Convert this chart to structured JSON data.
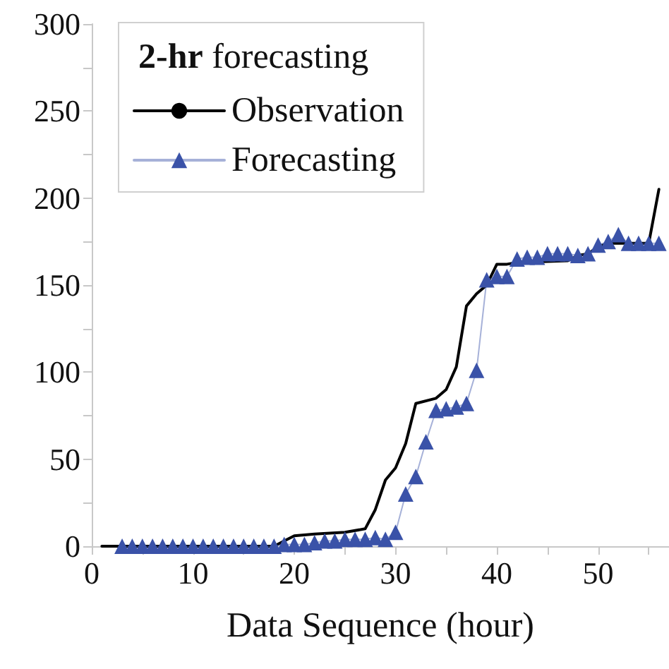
{
  "chart_data": {
    "type": "line",
    "legend_title": "2-hr forecasting",
    "xlabel": "Data Sequence (hour)",
    "xlim": [
      0,
      57
    ],
    "xticks": [
      0,
      {
        "value": 5,
        "label": null
      },
      10,
      {
        "value": 15,
        "label": null
      },
      20,
      {
        "value": 25,
        "label": null
      },
      30,
      {
        "value": 35,
        "label": null
      },
      40,
      {
        "value": 45,
        "label": null
      },
      50,
      {
        "value": 55,
        "label": null
      }
    ],
    "ylim": [
      0,
      300
    ],
    "yticks": [
      0,
      {
        "value": 25,
        "label": null
      },
      50,
      {
        "value": 75,
        "label": null
      },
      100,
      {
        "value": 125,
        "label": null
      },
      150,
      {
        "value": 175,
        "label": null
      },
      200,
      {
        "value": 225,
        "label": null
      },
      250,
      {
        "value": 275,
        "label": null
      },
      300
    ],
    "grid": false,
    "legend": "top left",
    "series": [
      {
        "name": "Observation",
        "color": "#000000",
        "marker": "none",
        "x": [
          1,
          18,
          20,
          22,
          25,
          27,
          28,
          29,
          30,
          31,
          32,
          34,
          35,
          36,
          37,
          38,
          39,
          40,
          41,
          42,
          47,
          48,
          49,
          50,
          51,
          55,
          56
        ],
        "values": [
          0,
          0,
          6,
          7,
          8,
          10,
          21,
          38,
          45,
          59,
          82,
          85,
          90,
          103,
          138,
          145,
          150,
          162,
          162,
          163,
          164,
          167,
          168,
          172,
          174,
          174,
          205
        ]
      },
      {
        "name": "Forecasting",
        "color": "#3a52a8",
        "marker": "triangle",
        "x": [
          3,
          4,
          5,
          6,
          7,
          8,
          9,
          10,
          11,
          12,
          13,
          14,
          15,
          16,
          17,
          18,
          19,
          20,
          21,
          22,
          23,
          24,
          25,
          26,
          27,
          28,
          29,
          30,
          31,
          32,
          33,
          34,
          35,
          36,
          37,
          38,
          39,
          40,
          41,
          42,
          43,
          44,
          45,
          46,
          47,
          48,
          49,
          50,
          51,
          52,
          53,
          54,
          55,
          56
        ],
        "values": [
          0,
          0,
          0,
          0,
          0,
          0,
          0,
          0,
          0,
          0,
          0,
          0,
          0,
          0,
          0,
          0,
          1,
          1,
          1,
          2,
          3,
          3,
          4,
          4,
          4,
          5,
          4,
          8,
          30,
          40,
          60,
          78,
          79,
          80,
          82,
          101,
          153,
          155,
          155,
          165,
          166,
          166,
          168,
          168,
          168,
          167,
          168,
          173,
          175,
          179,
          174,
          174,
          174,
          174
        ]
      }
    ]
  }
}
